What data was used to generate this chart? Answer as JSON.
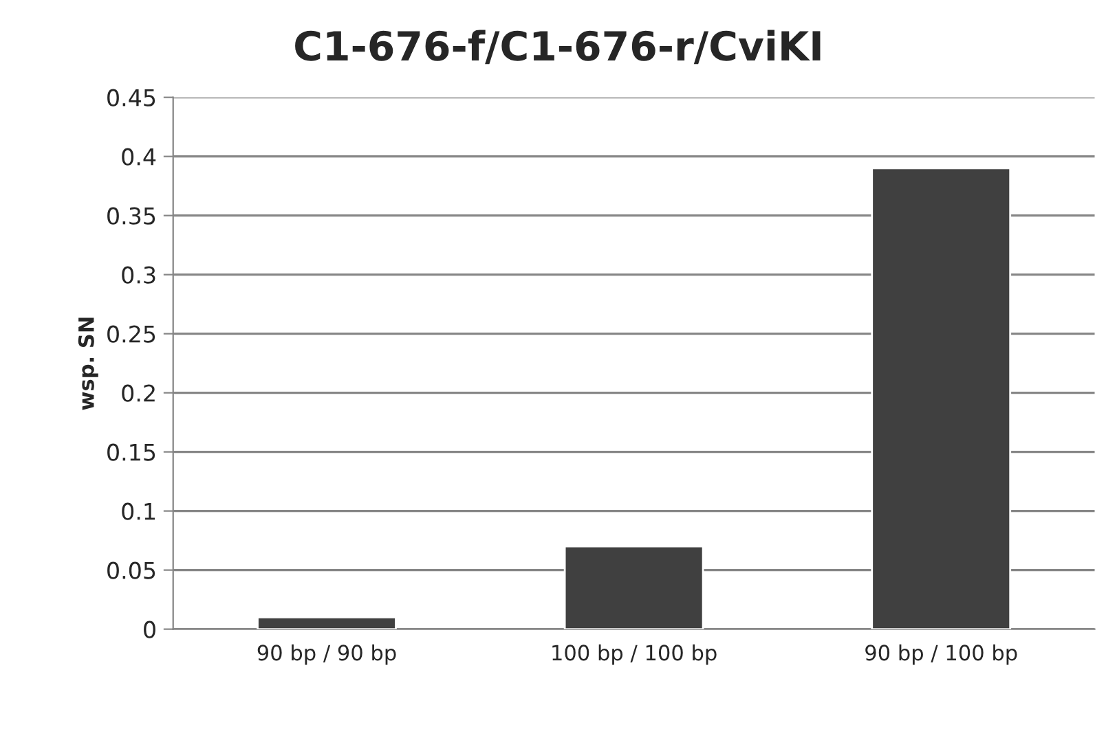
{
  "chart_data": {
    "type": "bar",
    "title": "C1-676-f/C1-676-r/CviKI",
    "ylabel": "wsp. SN",
    "categories": [
      "90 bp / 90 bp",
      "100 bp / 100 bp",
      "90 bp / 100 bp"
    ],
    "values": [
      0.01,
      0.07,
      0.39
    ],
    "color": "#404040",
    "ylim": [
      0,
      0.45
    ],
    "yticks": [
      0,
      0.05,
      0.1,
      0.15,
      0.2,
      0.25,
      0.3,
      0.35,
      0.4,
      0.45
    ],
    "grid": "y",
    "legend": false
  }
}
